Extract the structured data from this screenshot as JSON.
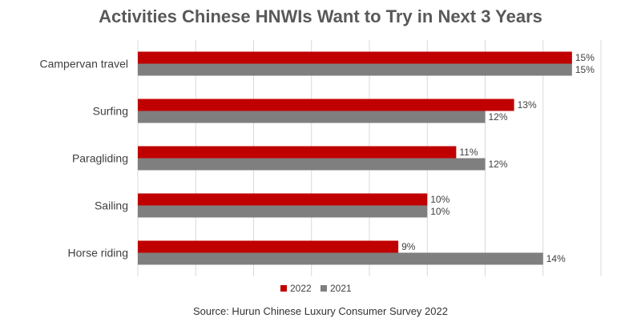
{
  "chart_data": {
    "type": "bar",
    "orientation": "horizontal",
    "title": "Activities Chinese HNWIs Want to Try in Next 3 Years",
    "categories": [
      "Campervan travel",
      "Surfing",
      "Paragliding",
      "Sailing",
      "Horse riding"
    ],
    "series": [
      {
        "name": "2022",
        "values": [
          15,
          13,
          11,
          10,
          9
        ],
        "color": "#C00000"
      },
      {
        "name": "2021",
        "values": [
          15,
          12,
          12,
          10,
          14
        ],
        "color": "#7F7F7F"
      }
    ],
    "value_suffix": "%",
    "xlim": [
      0,
      16
    ],
    "grid": true,
    "legend": "bottom",
    "source": "Source: Hurun Chinese Luxury Consumer Survey 2022"
  }
}
